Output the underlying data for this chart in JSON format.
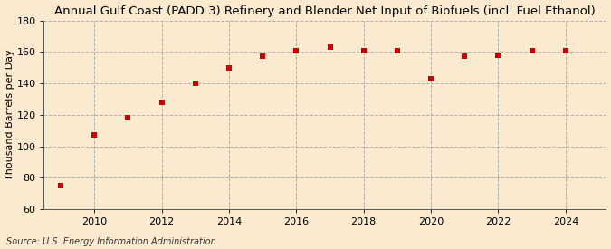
{
  "title": "Annual Gulf Coast (PADD 3) Refinery and Blender Net Input of Biofuels (incl. Fuel Ethanol)",
  "ylabel": "Thousand Barrels per Day",
  "source": "Source: U.S. Energy Information Administration",
  "background_color": "#faebd0",
  "years": [
    2009,
    2010,
    2011,
    2012,
    2013,
    2014,
    2015,
    2016,
    2017,
    2018,
    2019,
    2020,
    2021,
    2022,
    2023,
    2024
  ],
  "values": [
    75,
    107,
    118,
    128,
    140,
    150,
    157,
    161,
    163,
    161,
    161,
    143,
    157,
    158,
    161,
    161
  ],
  "marker_color": "#cc0000",
  "marker": "s",
  "marker_size": 4,
  "ylim": [
    60,
    180
  ],
  "yticks": [
    60,
    80,
    100,
    120,
    140,
    160,
    180
  ],
  "xlim": [
    2008.5,
    2025.2
  ],
  "xticks": [
    2010,
    2012,
    2014,
    2016,
    2018,
    2020,
    2022,
    2024
  ],
  "grid_color": "#aaaaaa",
  "grid_style": "--",
  "title_fontsize": 9.5,
  "label_fontsize": 8,
  "tick_fontsize": 8,
  "source_fontsize": 7
}
